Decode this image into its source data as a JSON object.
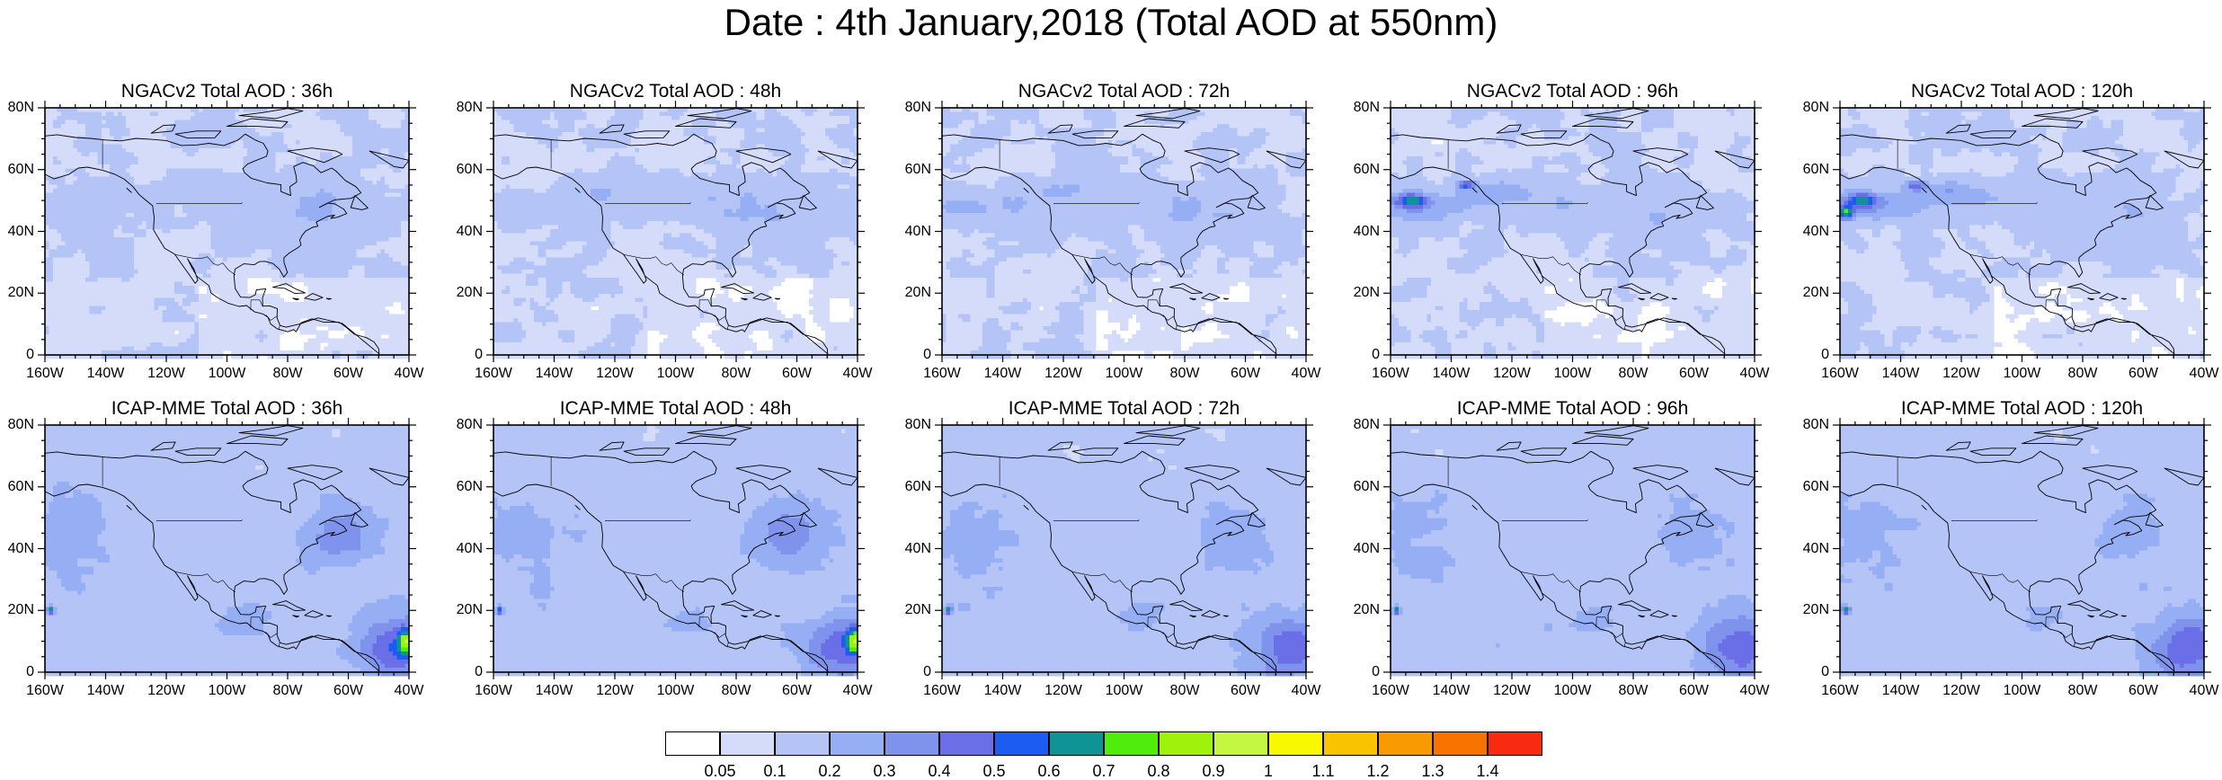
{
  "title": "Date : 4th January,2018 (Total AOD at 550nm)",
  "map_extent": {
    "lon": [
      -160,
      -40
    ],
    "lat": [
      0,
      80
    ]
  },
  "lat_ticks": [
    "80N",
    "60N",
    "40N",
    "20N",
    "0"
  ],
  "lon_ticks": [
    "160W",
    "140W",
    "120W",
    "100W",
    "80W",
    "60W",
    "40W"
  ],
  "panels": [
    {
      "title": "NGACv2 Total AOD : 36h",
      "model": "NGACv2",
      "lead": "36h"
    },
    {
      "title": "NGACv2 Total AOD : 48h",
      "model": "NGACv2",
      "lead": "48h"
    },
    {
      "title": "NGACv2 Total AOD : 72h",
      "model": "NGACv2",
      "lead": "72h"
    },
    {
      "title": "NGACv2 Total AOD : 96h",
      "model": "NGACv2",
      "lead": "96h"
    },
    {
      "title": "NGACv2 Total AOD : 120h",
      "model": "NGACv2",
      "lead": "120h"
    },
    {
      "title": "ICAP-MME Total AOD : 36h",
      "model": "ICAP-MME",
      "lead": "36h"
    },
    {
      "title": "ICAP-MME Total AOD : 48h",
      "model": "ICAP-MME",
      "lead": "48h"
    },
    {
      "title": "ICAP-MME Total AOD : 72h",
      "model": "ICAP-MME",
      "lead": "72h"
    },
    {
      "title": "ICAP-MME Total AOD : 96h",
      "model": "ICAP-MME",
      "lead": "96h"
    },
    {
      "title": "ICAP-MME Total AOD : 120h",
      "model": "ICAP-MME",
      "lead": "120h"
    }
  ],
  "colorbar": {
    "labels": [
      "0.05",
      "0.1",
      "0.2",
      "0.3",
      "0.4",
      "0.5",
      "0.6",
      "0.7",
      "0.8",
      "0.9",
      "1",
      "1.1",
      "1.2",
      "1.3",
      "1.4"
    ],
    "colors": [
      "#ffffff",
      "#d5dcfa",
      "#b4c4f6",
      "#96aef4",
      "#7f93ed",
      "#6a6ee7",
      "#1d5cf2",
      "#0e9494",
      "#50ec0e",
      "#9ef20c",
      "#c4f840",
      "#f8f800",
      "#f8c400",
      "#f89a00",
      "#f87200",
      "#f82a10"
    ]
  }
}
